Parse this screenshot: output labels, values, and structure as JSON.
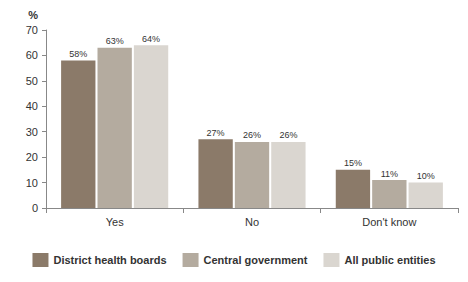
{
  "chart_data": {
    "type": "bar",
    "y_label": "%",
    "categories": [
      "Yes",
      "No",
      "Don't know"
    ],
    "series": [
      {
        "name": "District health boards",
        "color": "#8b7a69",
        "values": [
          58,
          27,
          15
        ],
        "value_labels": [
          "58%",
          "27%",
          "15%"
        ]
      },
      {
        "name": "Central government",
        "color": "#b4ab9f",
        "values": [
          63,
          26,
          11
        ],
        "value_labels": [
          "63%",
          "26%",
          "11%"
        ]
      },
      {
        "name": "All public entities",
        "color": "#dad6d0",
        "values": [
          64,
          26,
          10
        ],
        "value_labels": [
          "64%",
          "26%",
          "10%"
        ]
      }
    ],
    "ylim": [
      0,
      70
    ],
    "yticks": [
      0,
      10,
      20,
      30,
      40,
      50,
      60,
      70
    ],
    "grid": false,
    "legend": "bottom",
    "data_labels": true
  }
}
